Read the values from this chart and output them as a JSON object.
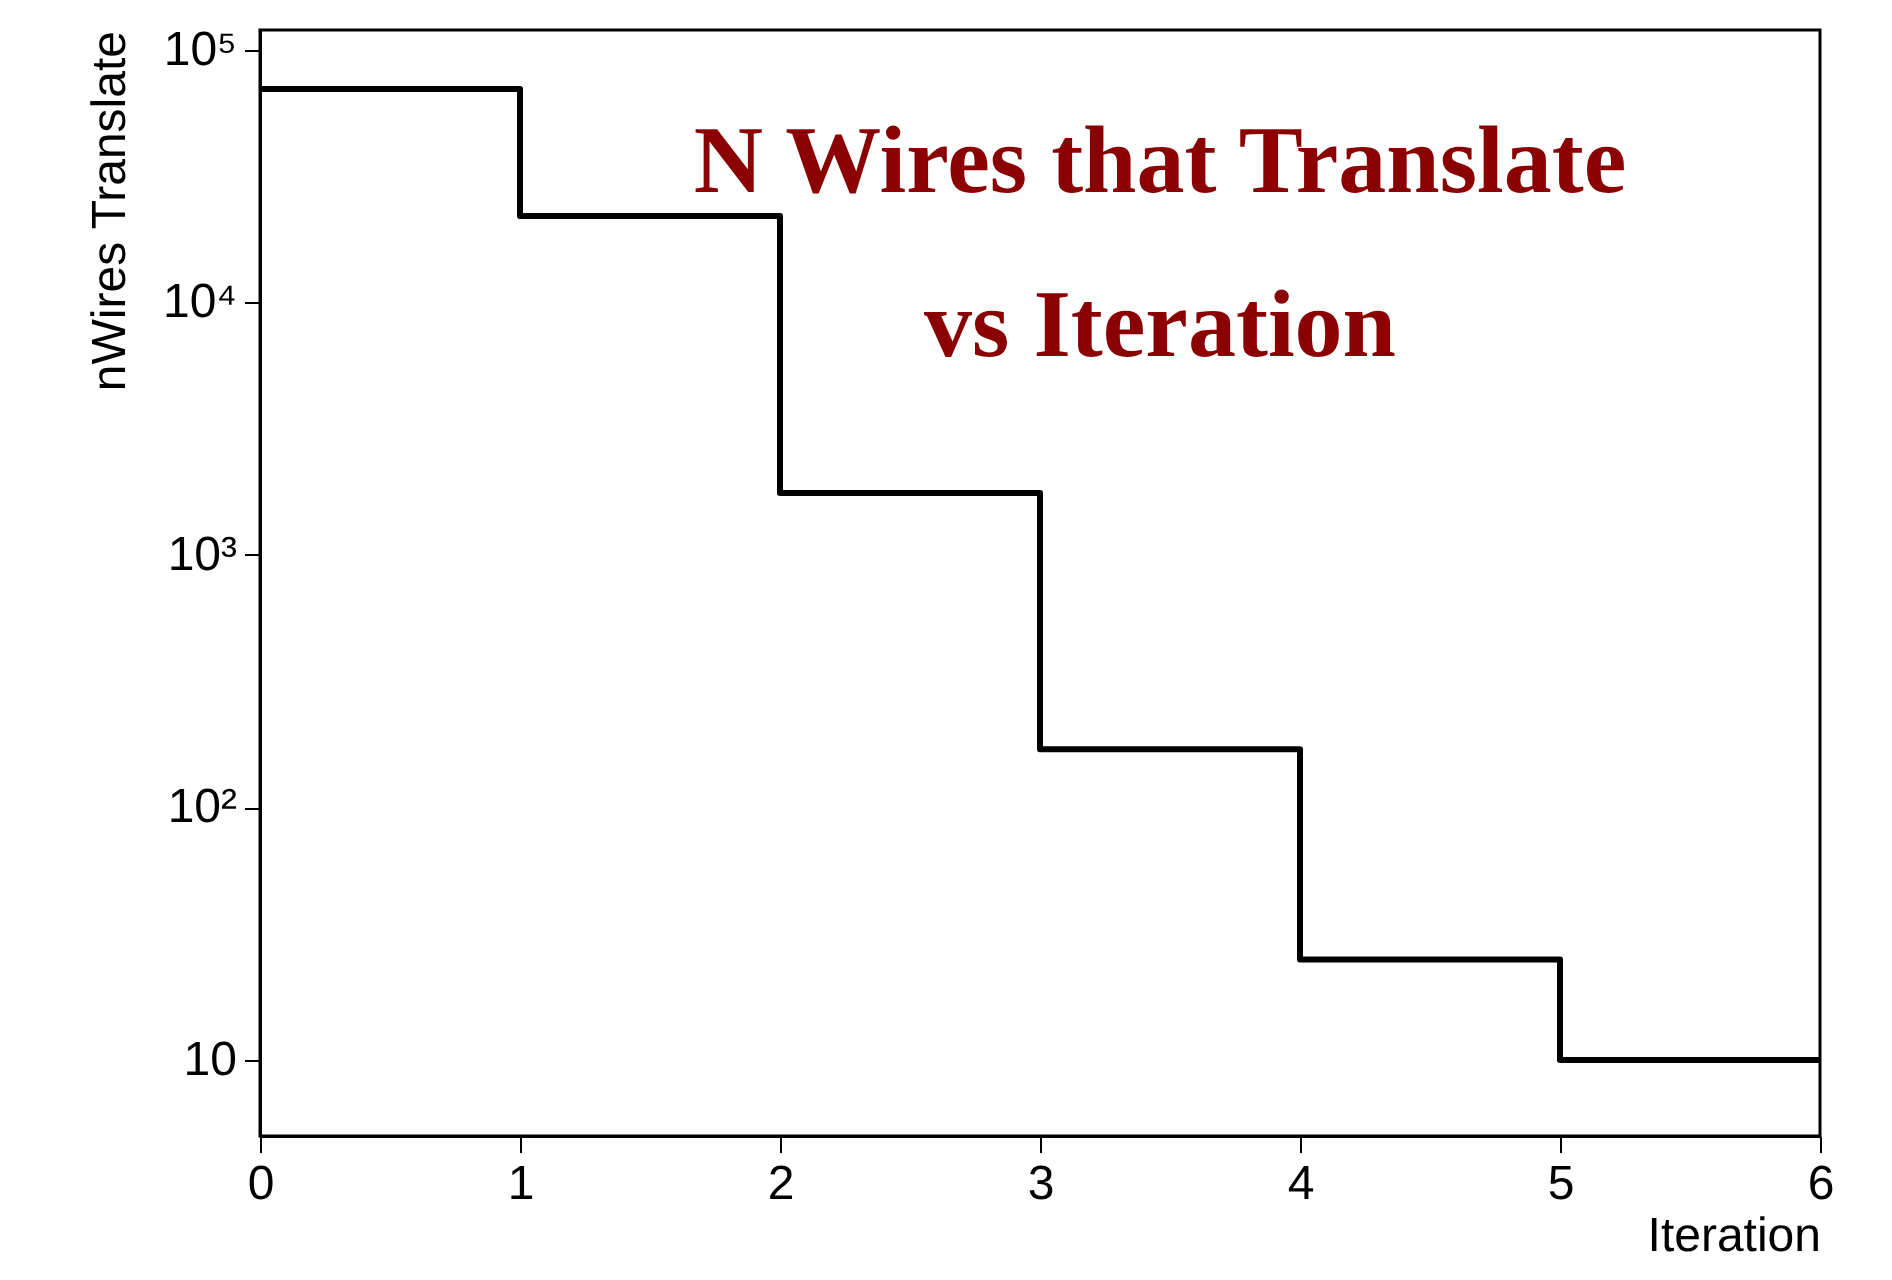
{
  "chart_data": {
    "type": "histogram",
    "title": "N Wires that Translate\nvs Iteration",
    "xlabel": "Iteration",
    "ylabel": "nWires Translate",
    "bins": [
      0,
      1,
      2,
      3,
      4,
      5,
      6
    ],
    "values": [
      70000,
      22000,
      1760,
      170,
      25,
      10
    ],
    "color": "#000000",
    "log": "y",
    "grid": false,
    "xlim": [
      0,
      6
    ],
    "xticks": [
      0,
      1,
      2,
      3,
      4,
      5,
      6
    ],
    "ylim": [
      5,
      120000
    ],
    "yticks": [
      10,
      {
        "value": 100,
        "label": "10²"
      },
      {
        "value": 1000,
        "label": "10³"
      },
      {
        "value": 10000,
        "label": "10⁴"
      },
      {
        "value": 100000,
        "label": "10⁵"
      }
    ]
  }
}
